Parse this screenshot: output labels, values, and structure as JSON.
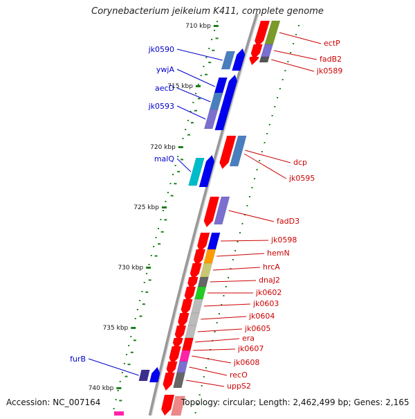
{
  "title": "Corynebacterium jeikeium K411, complete genome",
  "footer": {
    "accession": "Accession: NC_007164",
    "summary": "Topology: circular; Length: 2,462,499 bp; Genes: 2,165"
  },
  "ticks": [
    "710 kbp",
    "715 kbp",
    "720 kbp",
    "725 kbp",
    "730 kbp",
    "735 kbp",
    "740 kbp"
  ],
  "forward_genes": [
    {
      "label": "jk0590",
      "color": "#4a7fbf"
    },
    {
      "label": "ywjA",
      "color": "#0000ee"
    },
    {
      "label": "aecD",
      "color": "#4a7fbf"
    },
    {
      "label": "jk0593",
      "color": "#7b6fd0"
    },
    {
      "label": "malQ",
      "color": "#00bcc8"
    },
    {
      "label": "furB",
      "color": "#3a2f8f"
    }
  ],
  "reverse_genes": [
    {
      "label": "ectP",
      "color": "#7a9a2a"
    },
    {
      "label": "fadB2",
      "color": "#7b6fd0"
    },
    {
      "label": "jk0589",
      "color": "#555555"
    },
    {
      "label": "dcp",
      "color": "#4a7fbf"
    },
    {
      "label": "jk0595",
      "color": "#4a7fbf"
    },
    {
      "label": "fadD3",
      "color": "#7b6fd0"
    },
    {
      "label": "jk0598",
      "color": "#0000ee"
    },
    {
      "label": "hemN",
      "color": "#ff9a00"
    },
    {
      "label": "hrcA",
      "color": "#c8c870"
    },
    {
      "label": "dnaJ2",
      "color": "#666666"
    },
    {
      "label": "jk0602",
      "color": "#22cc22"
    },
    {
      "label": "jk0603",
      "color": "#bbbbbb"
    },
    {
      "label": "jk0604",
      "color": "#bbbbbb"
    },
    {
      "label": "jk0605",
      "color": "#bbbbbb"
    },
    {
      "label": "era",
      "color": "#ff0000"
    },
    {
      "label": "jk0607",
      "color": "#ff0000"
    },
    {
      "label": "jk0608",
      "color": "#ff22aa"
    },
    {
      "label": "recO",
      "color": "#7b6fd0"
    },
    {
      "label": "uppS2",
      "color": "#666666"
    }
  ],
  "colors": {
    "forward_label": "#0000cc",
    "reverse_label": "#cc0000",
    "cds": "#ff0000",
    "tick": "#1a7f1a",
    "backbone": "#888888"
  }
}
